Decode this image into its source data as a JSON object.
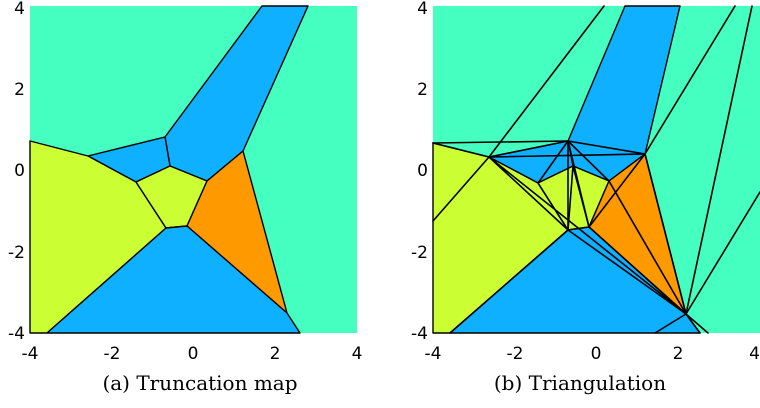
{
  "colors": {
    "teal": "#44ffbf",
    "blue": "#0fb0ff",
    "yellow": "#ccff33",
    "orange": "#ff9900",
    "edge": "#000000"
  },
  "ticks": {
    "a_x": [
      "-4",
      "-2",
      "0",
      "2",
      "4"
    ],
    "a_y": [
      "4",
      "2",
      "0",
      "-2",
      "-4"
    ],
    "b_x": [
      "-4",
      "-2",
      "0",
      "2",
      "4"
    ],
    "b_y": [
      "4",
      "2",
      "0",
      "-2",
      "-4"
    ]
  },
  "captions": {
    "a": "(a) Truncation map",
    "b": "(b) Triangulation"
  }
}
